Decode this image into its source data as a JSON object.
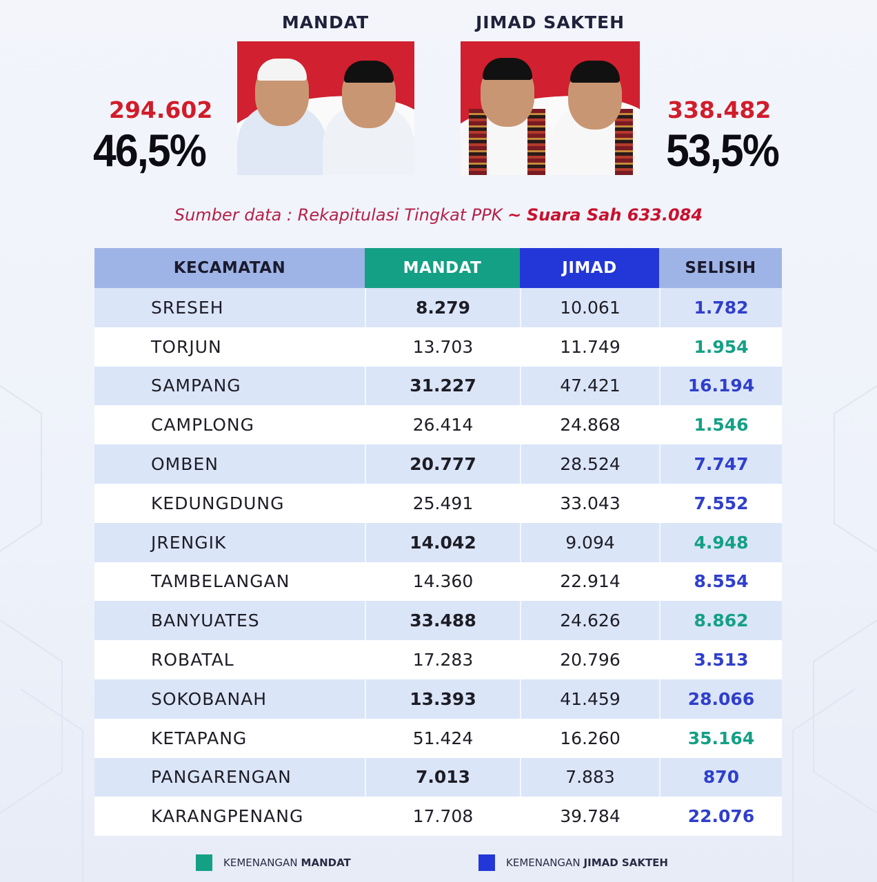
{
  "candidates": {
    "left": {
      "name": "MANDAT",
      "votes": "294.602",
      "percent": "46,5%"
    },
    "right": {
      "name": "JIMAD SAKTEH",
      "votes": "338.482",
      "percent": "53,5%"
    }
  },
  "source": {
    "text": "Sumber data : Rekapitulasi Tingkat PPK",
    "separator": "~",
    "valid_votes": "Suara Sah 633.084"
  },
  "table": {
    "headers": [
      "KECAMATAN",
      "MANDAT",
      "JIMAD",
      "SELISIH"
    ],
    "rows": [
      {
        "kecamatan": "SRESEH",
        "mandat": "8.279",
        "jimad": "10.061",
        "selisih": "1.782",
        "winner": "jimad"
      },
      {
        "kecamatan": "TORJUN",
        "mandat": "13.703",
        "jimad": "11.749",
        "selisih": "1.954",
        "winner": "mandat"
      },
      {
        "kecamatan": "SAMPANG",
        "mandat": "31.227",
        "jimad": "47.421",
        "selisih": "16.194",
        "winner": "jimad"
      },
      {
        "kecamatan": "CAMPLONG",
        "mandat": "26.414",
        "jimad": "24.868",
        "selisih": "1.546",
        "winner": "mandat"
      },
      {
        "kecamatan": "OMBEN",
        "mandat": "20.777",
        "jimad": "28.524",
        "selisih": "7.747",
        "winner": "jimad"
      },
      {
        "kecamatan": "KEDUNGDUNG",
        "mandat": "25.491",
        "jimad": "33.043",
        "selisih": "7.552",
        "winner": "jimad"
      },
      {
        "kecamatan": "JRENGIK",
        "mandat": "14.042",
        "jimad": "9.094",
        "selisih": "4.948",
        "winner": "mandat"
      },
      {
        "kecamatan": "TAMBELANGAN",
        "mandat": "14.360",
        "jimad": "22.914",
        "selisih": "8.554",
        "winner": "jimad"
      },
      {
        "kecamatan": "BANYUATES",
        "mandat": "33.488",
        "jimad": "24.626",
        "selisih": "8.862",
        "winner": "mandat"
      },
      {
        "kecamatan": "ROBATAL",
        "mandat": "17.283",
        "jimad": "20.796",
        "selisih": "3.513",
        "winner": "jimad"
      },
      {
        "kecamatan": "SOKOBANAH",
        "mandat": "13.393",
        "jimad": "41.459",
        "selisih": "28.066",
        "winner": "jimad"
      },
      {
        "kecamatan": "KETAPANG",
        "mandat": "51.424",
        "jimad": "16.260",
        "selisih": "35.164",
        "winner": "mandat"
      },
      {
        "kecamatan": "PANGARENGAN",
        "mandat": "7.013",
        "jimad": "7.883",
        "selisih": "870",
        "winner": "jimad"
      },
      {
        "kecamatan": "KARANGPENANG",
        "mandat": "17.708",
        "jimad": "39.784",
        "selisih": "22.076",
        "winner": "jimad"
      }
    ]
  },
  "legend": {
    "mandat": {
      "prefix": "KEMENANGAN",
      "name": "MANDAT",
      "color": "#14a085"
    },
    "jimad": {
      "prefix": "KEMENANGAN",
      "name": "JIMAD SAKTEH",
      "color": "#2337d8"
    }
  },
  "colors": {
    "mandat_win": "#14a085",
    "jimad_win": "#2f3fcc",
    "vote_red": "#d11c2a"
  }
}
